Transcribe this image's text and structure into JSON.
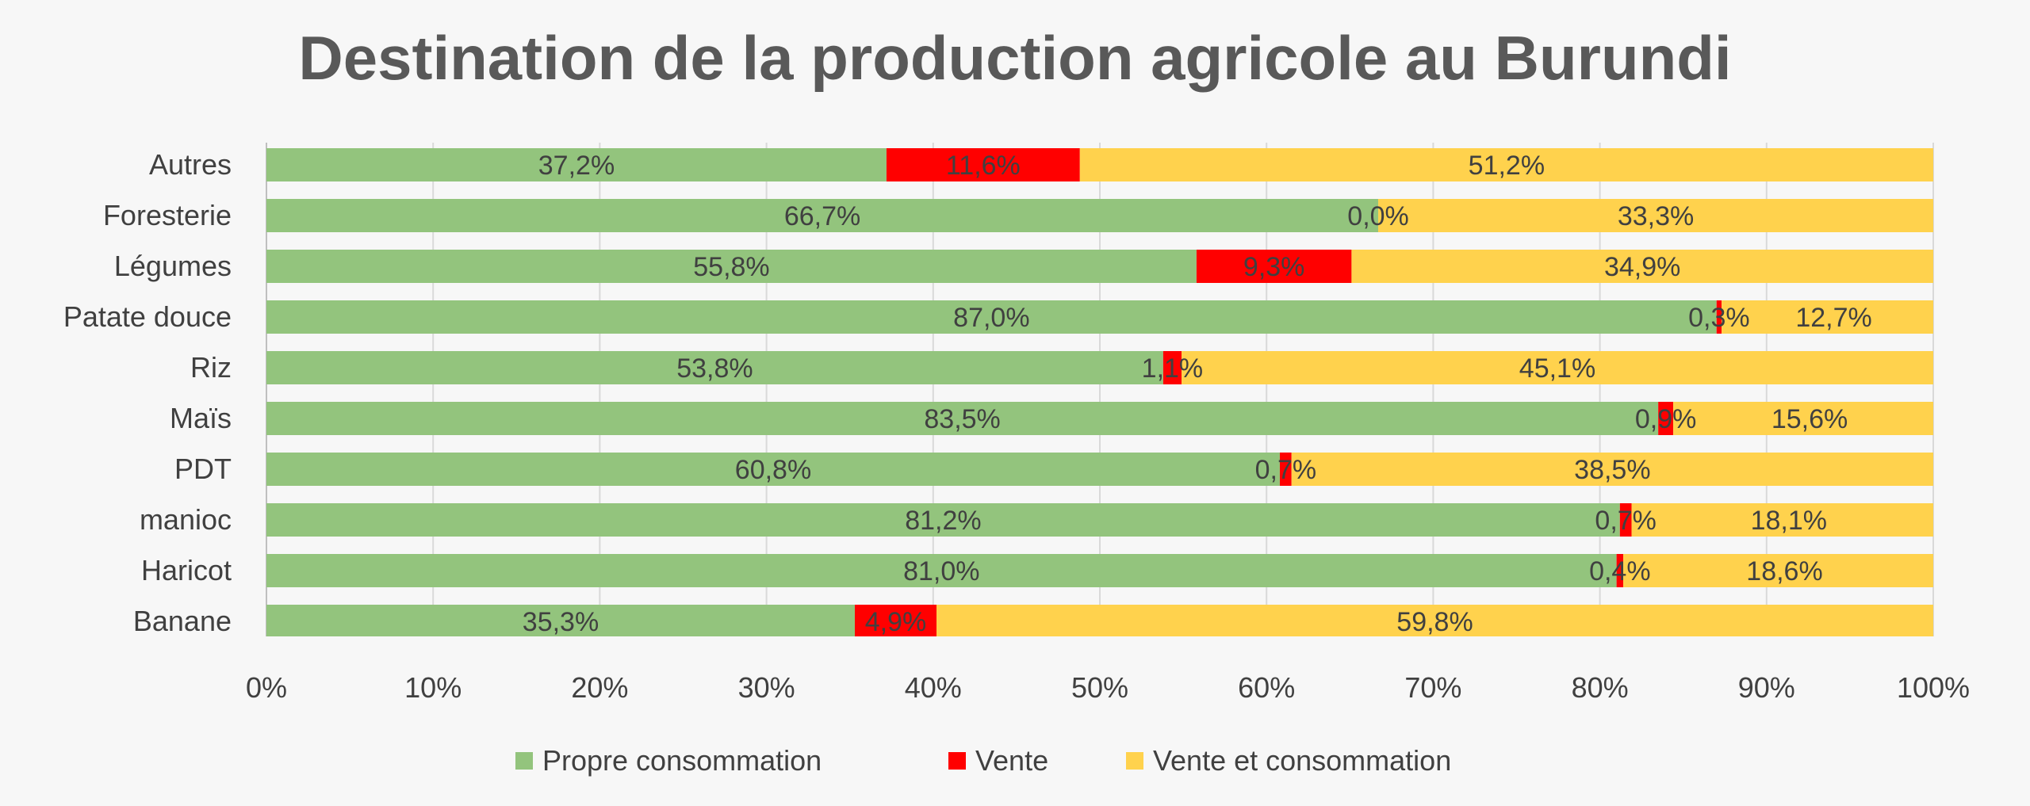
{
  "chart_data": {
    "type": "bar",
    "orientation": "horizontal",
    "stacked": "percent",
    "title": "Destination  de  la  production agricole au Burundi",
    "categories": [
      "Autres",
      "Foresterie",
      "Légumes",
      "Patate douce",
      "Riz",
      "Maïs",
      "PDT",
      "manioc",
      "Haricot",
      "Banane"
    ],
    "series": [
      {
        "name": "Propre consommation",
        "color": "#93c47d",
        "values": [
          37.2,
          66.7,
          55.8,
          87.0,
          53.8,
          83.5,
          60.8,
          81.2,
          81.0,
          35.3
        ],
        "labels": [
          "37,2%",
          "66,7%",
          "55,8%",
          "87,0%",
          "53,8%",
          "83,5%",
          "60,8%",
          "81,2%",
          "81,0%",
          "35,3%"
        ]
      },
      {
        "name": "Vente",
        "color": "#ff0000",
        "values": [
          11.6,
          0.0,
          9.3,
          0.3,
          1.1,
          0.9,
          0.7,
          0.7,
          0.4,
          4.9
        ],
        "labels": [
          "11,6%",
          "0,0%",
          "9,3%",
          "0,3%",
          "1,1%",
          "0,9%",
          "0,7%",
          "0,7%",
          "0,4%",
          "4,9%"
        ]
      },
      {
        "name": "Vente et consommation",
        "color": "#ffd24d",
        "values": [
          51.2,
          33.3,
          34.9,
          12.7,
          45.1,
          15.6,
          38.5,
          18.1,
          18.6,
          59.8
        ],
        "labels": [
          "51,2%",
          "33,3%",
          "34,9%",
          "12,7%",
          "45,1%",
          "15,6%",
          "38,5%",
          "18,1%",
          "18,6%",
          "59,8%"
        ]
      }
    ],
    "xlim": [
      0,
      100
    ],
    "x_ticks": [
      "0%",
      "10%",
      "20%",
      "30%",
      "40%",
      "50%",
      "60%",
      "70%",
      "80%",
      "90%",
      "100%"
    ],
    "grid": true,
    "legend_position": "bottom"
  }
}
